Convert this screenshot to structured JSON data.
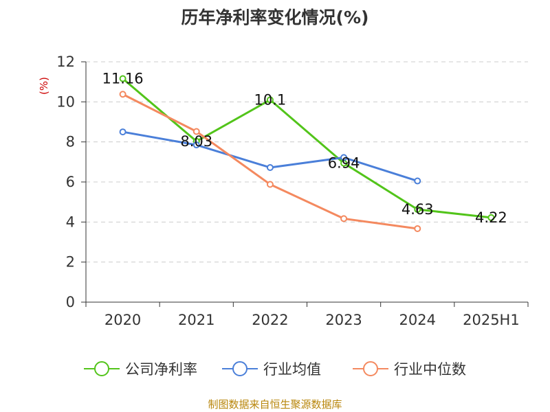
{
  "chart_data": {
    "type": "line",
    "title": "历年净利率变化情况(%)",
    "y_unit": "(%)",
    "categories": [
      "2020",
      "2021",
      "2022",
      "2023",
      "2024",
      "2025H1"
    ],
    "ylim": [
      0,
      12
    ],
    "yticks": [
      0,
      2,
      4,
      6,
      8,
      10,
      12
    ],
    "grid": true,
    "legend_position": "bottom",
    "series": [
      {
        "name": "公司净利率",
        "color": "#52c41a",
        "values": [
          11.16,
          8.03,
          10.1,
          6.94,
          4.63,
          4.22
        ],
        "data_labels": [
          "11.16",
          "8.03",
          "10.1",
          "6.94",
          "4.63",
          "4.22"
        ]
      },
      {
        "name": "行业均值",
        "color": "#4a7fd9",
        "values": [
          8.5,
          7.85,
          6.72,
          7.22,
          6.05,
          null
        ]
      },
      {
        "name": "行业中位数",
        "color": "#f4895f",
        "values": [
          10.38,
          8.52,
          5.88,
          4.17,
          3.67,
          null
        ]
      }
    ],
    "source": "制图数据来自恒生聚源数据库"
  }
}
